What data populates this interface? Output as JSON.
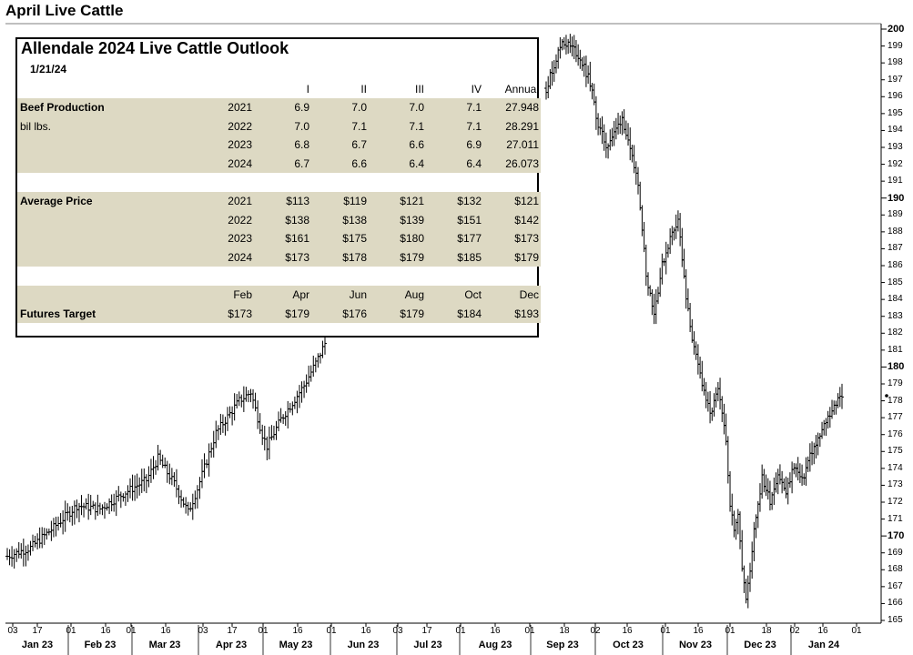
{
  "title": "April Live Cattle",
  "chart_data": {
    "type": "bar",
    "title": "April Live Cattle",
    "style": "ohlc",
    "ylim": [
      165,
      200
    ],
    "y_ticks": [
      165,
      166,
      167,
      168,
      169,
      170,
      171,
      172,
      173,
      174,
      175,
      176,
      177,
      178,
      179,
      180,
      181,
      182,
      183,
      184,
      185,
      186,
      187,
      188,
      189,
      190,
      191,
      192,
      193,
      194,
      195,
      196,
      197,
      198,
      199,
      200
    ],
    "y_major": [
      170,
      180,
      190,
      200
    ],
    "last_price": 178.3,
    "x_day_ticks": [
      "03",
      "17",
      "01",
      "16",
      "01",
      "16",
      "03",
      "17",
      "01",
      "16",
      "01",
      "16",
      "03",
      "17",
      "01",
      "16",
      "01",
      "18",
      "02",
      "16",
      "01",
      "16",
      "01",
      "18",
      "02",
      "16",
      "01"
    ],
    "x_month_labels": [
      "Jan 23",
      "Feb 23",
      "Mar 23",
      "Apr 23",
      "May 23",
      "Jun 23",
      "Jul 23",
      "Aug 23",
      "Sep 23",
      "Oct 23",
      "Nov 23",
      "Dec 23",
      "Jan 24"
    ],
    "segments": [
      {
        "period": "Jan 23 - May 23",
        "points": [
          [
            0,
            168.8
          ],
          [
            10,
            169.3
          ],
          [
            20,
            170.5
          ],
          [
            30,
            171.8
          ],
          [
            40,
            171.6
          ],
          [
            50,
            172.5
          ],
          [
            60,
            173.3
          ],
          [
            65,
            174.6
          ],
          [
            72,
            173.1
          ],
          [
            78,
            171.4
          ],
          [
            82,
            172.8
          ],
          [
            90,
            176.1
          ],
          [
            100,
            178.0
          ],
          [
            105,
            178.5
          ],
          [
            110,
            176.0
          ],
          [
            112,
            175.3
          ],
          [
            118,
            176.9
          ],
          [
            124,
            178.1
          ],
          [
            128,
            178.9
          ],
          [
            134,
            180.5
          ],
          [
            137,
            181.4
          ]
        ]
      },
      {
        "period": "Sep 23 - Jan 24",
        "points": [
          [
            0,
            196.5
          ],
          [
            8,
            199.3
          ],
          [
            14,
            198.8
          ],
          [
            18,
            198.0
          ],
          [
            22,
            196.8
          ],
          [
            26,
            194.3
          ],
          [
            30,
            193.1
          ],
          [
            34,
            193.8
          ],
          [
            38,
            194.8
          ],
          [
            42,
            192.7
          ],
          [
            46,
            191.0
          ],
          [
            50,
            185.5
          ],
          [
            54,
            183.2
          ],
          [
            58,
            186.0
          ],
          [
            62,
            187.6
          ],
          [
            66,
            188.8
          ],
          [
            70,
            184.0
          ],
          [
            74,
            181.0
          ],
          [
            78,
            179.1
          ],
          [
            82,
            177.1
          ],
          [
            86,
            178.6
          ],
          [
            90,
            175.6
          ],
          [
            92,
            172.0
          ],
          [
            94,
            170.2
          ],
          [
            96,
            171.5
          ],
          [
            98,
            168.2
          ],
          [
            100,
            166.2
          ],
          [
            102,
            167.9
          ],
          [
            104,
            170.5
          ],
          [
            108,
            173.4
          ],
          [
            112,
            172.1
          ],
          [
            116,
            173.7
          ],
          [
            120,
            172.5
          ],
          [
            124,
            174.2
          ],
          [
            128,
            173.2
          ],
          [
            132,
            174.8
          ],
          [
            136,
            175.6
          ],
          [
            140,
            176.8
          ],
          [
            144,
            177.7
          ],
          [
            148,
            178.3
          ]
        ]
      }
    ]
  },
  "outlook": {
    "title": "Allendale 2024 Live Cattle Outlook",
    "date": "1/21/24",
    "quarter_headers": [
      "I",
      "II",
      "III",
      "IV",
      "Annual"
    ],
    "beef": {
      "label": "Beef Production",
      "unit": "bil lbs.",
      "rows": [
        {
          "year": "2021",
          "values": [
            "6.9",
            "7.0",
            "7.0",
            "7.1",
            "27.948"
          ]
        },
        {
          "year": "2022",
          "values": [
            "7.0",
            "7.1",
            "7.1",
            "7.1",
            "28.291"
          ]
        },
        {
          "year": "2023",
          "values": [
            "6.8",
            "6.7",
            "6.6",
            "6.9",
            "27.011"
          ]
        },
        {
          "year": "2024",
          "values": [
            "6.7",
            "6.6",
            "6.4",
            "6.4",
            "26.073"
          ]
        }
      ]
    },
    "price": {
      "label": "Average Price",
      "rows": [
        {
          "year": "2021",
          "values": [
            "$113",
            "$119",
            "$121",
            "$132",
            "$121"
          ]
        },
        {
          "year": "2022",
          "values": [
            "$138",
            "$138",
            "$139",
            "$151",
            "$142"
          ]
        },
        {
          "year": "2023",
          "values": [
            "$161",
            "$175",
            "$180",
            "$177",
            "$173"
          ]
        },
        {
          "year": "2024",
          "values": [
            "$173",
            "$178",
            "$179",
            "$185",
            "$179"
          ]
        }
      ]
    },
    "futures": {
      "label": "Futures Target",
      "months": [
        "Feb",
        "Apr",
        "Jun",
        "Aug",
        "Oct",
        "Dec"
      ],
      "values": [
        "$173",
        "$179",
        "$176",
        "$179",
        "$184",
        "$193"
      ]
    }
  }
}
